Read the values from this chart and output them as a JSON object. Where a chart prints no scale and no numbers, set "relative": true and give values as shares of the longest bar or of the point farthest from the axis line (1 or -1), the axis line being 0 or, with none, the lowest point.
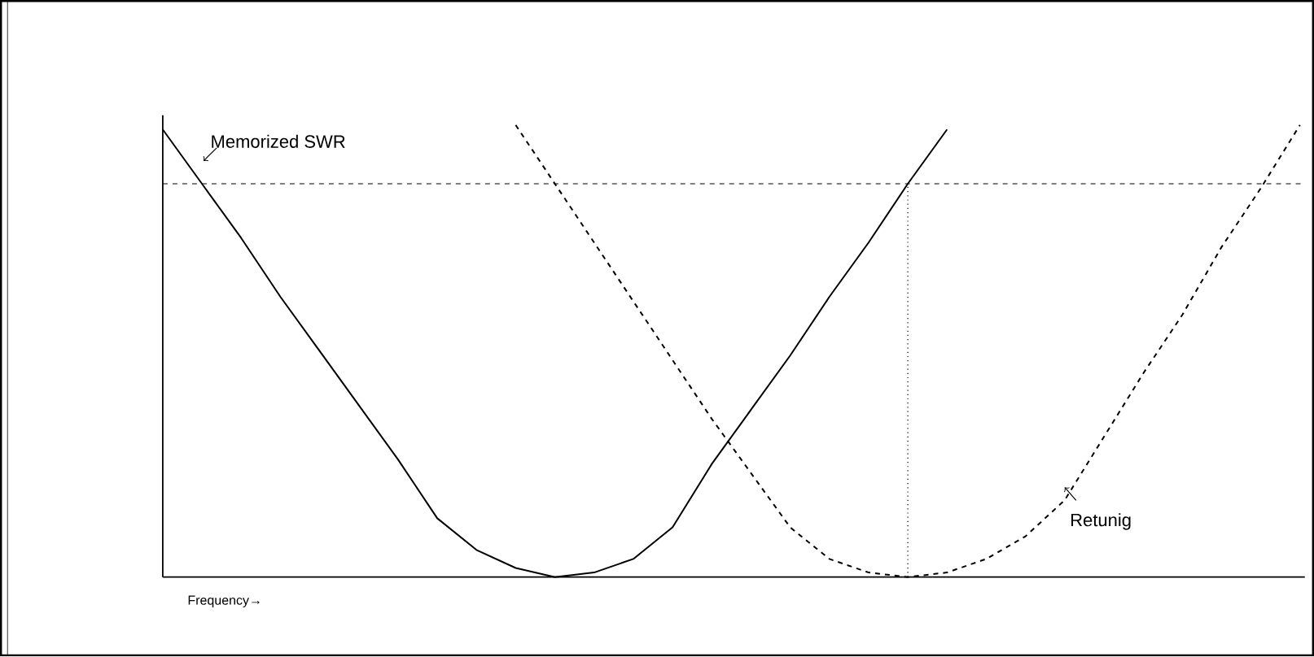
{
  "chart_data": {
    "type": "line",
    "relative": true,
    "xlabel": "Frequency→",
    "categories": [
      null,
      null,
      null,
      null,
      null,
      null,
      null,
      null,
      null,
      null,
      null,
      null,
      null,
      null,
      null,
      null,
      null,
      null,
      null,
      null,
      null,
      null,
      null,
      null,
      null,
      null,
      null,
      null,
      null,
      null
    ],
    "series": [
      {
        "color": "#000000",
        "line_style": "solid",
        "values": [
          0.99,
          0.87,
          0.75,
          0.62,
          0.5,
          0.38,
          0.26,
          0.13,
          0.06,
          0.02,
          0.0,
          0.01,
          0.04,
          0.11,
          0.25,
          0.37,
          0.49,
          0.62,
          0.74,
          0.87,
          0.99,
          null,
          null,
          null,
          null,
          null,
          null,
          null,
          null,
          null
        ]
      },
      {
        "color": "#000000",
        "line_style": "dashed",
        "values": [
          null,
          null,
          null,
          null,
          null,
          null,
          null,
          null,
          null,
          1.0,
          0.87,
          0.74,
          0.61,
          0.48,
          0.35,
          0.23,
          0.11,
          0.04,
          0.01,
          0.0,
          0.01,
          0.04,
          0.09,
          0.17,
          0.31,
          0.45,
          0.58,
          0.73,
          0.86,
          1.0
        ]
      }
    ],
    "ref_lines": [
      {
        "axis": "y",
        "value": 0.87,
        "line_style": "dashed"
      }
    ],
    "annotations": [
      "Memorized SWR",
      "Retunig"
    ]
  }
}
